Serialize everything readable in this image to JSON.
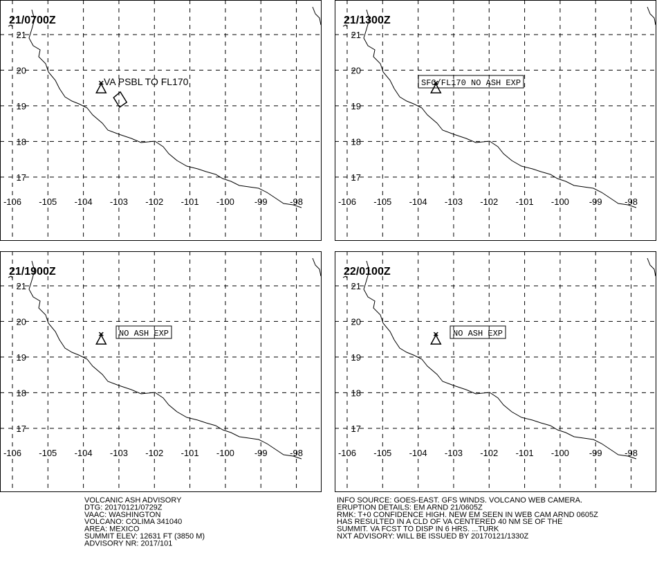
{
  "map": {
    "lonlim": [
      -106.35,
      -97.29
    ],
    "latlim": [
      15.23,
      21.97
    ],
    "lon_ticks": [
      -106,
      -105,
      -104,
      -103,
      -102,
      -101,
      -100,
      -99,
      -98
    ],
    "lat_ticks": [
      17,
      18,
      19,
      20,
      21
    ],
    "volcano": {
      "lon": -103.5,
      "lat": 19.5
    }
  },
  "panels": [
    {
      "time": "21/0700Z",
      "label": "VA PSBL TO FL170",
      "boxed": false,
      "ash_area": [
        [
          -103.15,
          19.23
        ],
        [
          -102.96,
          19.39
        ],
        [
          -102.78,
          19.1
        ],
        [
          -102.98,
          18.96
        ]
      ]
    },
    {
      "time": "21/1300Z",
      "label": "SFC/FL170 NO ASH EXP",
      "boxed": true
    },
    {
      "time": "21/1900Z",
      "label": "NO ASH EXP",
      "boxed": true
    },
    {
      "time": "22/0100Z",
      "label": "NO ASH EXP",
      "boxed": true
    }
  ],
  "info_left": [
    "VOLCANIC ASH ADVISORY",
    "DTG: 20170121/0729Z",
    "VAAC: WASHINGTON",
    "VOLCANO: COLIMA 341040",
    "AREA: MEXICO",
    "SUMMIT ELEV: 12631 FT (3850 M)",
    "ADVISORY NR: 2017/101"
  ],
  "info_right": [
    "INFO SOURCE: GOES-EAST. GFS WINDS. VOLCANO WEB CAMERA.",
    "ERUPTION DETAILS: EM ARND 21/0605Z",
    "RMK: T+0 CONFIDENCE HIGH. NEW EM SEEN IN WEB CAM ARND 0605Z",
    "HAS RESULTED IN A CLD OF VA CENTERED 40 NM SE OF THE",
    "SUMMIT. VA FCST TO DISP IN 6 HRS. ...TURK",
    "NXT ADVISORY: WILL BE ISSUED BY 20170121/1330Z"
  ]
}
